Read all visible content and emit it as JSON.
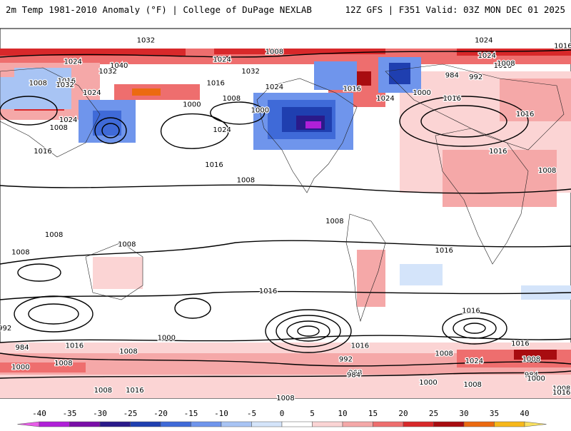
{
  "header": {
    "left_title": "2m Temp 1981-2010 Anomaly (°F) | College of DuPage NEXLAB",
    "right_title": "12Z GFS | F351 Valid: 03Z MON DEC 01 2025"
  },
  "colorbar": {
    "ticks": [
      "-40",
      "-35",
      "-30",
      "-25",
      "-20",
      "-15",
      "-10",
      "-5",
      "0",
      "5",
      "10",
      "15",
      "20",
      "25",
      "30",
      "35",
      "40"
    ],
    "colors": [
      "#e85ce8",
      "#b020d8",
      "#7a0ea8",
      "#2a1a8a",
      "#1f3fb0",
      "#3f6ad8",
      "#6f95ec",
      "#a8c4f4",
      "#d4e4fa",
      "#ffffff",
      "#fbd4d4",
      "#f5a8a8",
      "#ee6e6e",
      "#d8282a",
      "#a80c10",
      "#ec6a10",
      "#f7b81a",
      "#f9e060"
    ]
  },
  "isobars": [
    {
      "text": "1032",
      "lon": -88,
      "lat": 84
    },
    {
      "text": "1024",
      "lon": 125,
      "lat": 84
    },
    {
      "text": "1016",
      "lon": 175,
      "lat": 81
    },
    {
      "text": "1008",
      "lon": -7,
      "lat": 78
    },
    {
      "text": "1024",
      "lon": 127,
      "lat": 76
    },
    {
      "text": "1016",
      "lon": 137,
      "lat": 71
    },
    {
      "text": "1008",
      "lon": 139,
      "lat": 72
    },
    {
      "text": "1040",
      "lon": -105,
      "lat": 71
    },
    {
      "text": "1024",
      "lon": -134,
      "lat": 73
    },
    {
      "text": "1024",
      "lon": -40,
      "lat": 74
    },
    {
      "text": "1032",
      "lon": -112,
      "lat": 68
    },
    {
      "text": "1032",
      "lon": -22,
      "lat": 68
    },
    {
      "text": "1008",
      "lon": -156,
      "lat": 62
    },
    {
      "text": "1016",
      "lon": -138,
      "lat": 63
    },
    {
      "text": "1032",
      "lon": -139,
      "lat": 61
    },
    {
      "text": "1024",
      "lon": -122,
      "lat": 57
    },
    {
      "text": "1016",
      "lon": -44,
      "lat": 62
    },
    {
      "text": "1024",
      "lon": -7,
      "lat": 60
    },
    {
      "text": "1016",
      "lon": 42,
      "lat": 59
    },
    {
      "text": "984",
      "lon": 105,
      "lat": 66
    },
    {
      "text": "992",
      "lon": 120,
      "lat": 65
    },
    {
      "text": "1000",
      "lon": 86,
      "lat": 57
    },
    {
      "text": "1016",
      "lon": 105,
      "lat": 54
    },
    {
      "text": "1024",
      "lon": 63,
      "lat": 54
    },
    {
      "text": "1008",
      "lon": -34,
      "lat": 54
    },
    {
      "text": "1000",
      "lon": -59,
      "lat": 51
    },
    {
      "text": "1024",
      "lon": -137,
      "lat": 43
    },
    {
      "text": "1008",
      "lon": -143,
      "lat": 39
    },
    {
      "text": "1024",
      "lon": -40,
      "lat": 38
    },
    {
      "text": "1016",
      "lon": -153,
      "lat": 27
    },
    {
      "text": "1016",
      "lon": -45,
      "lat": 20
    },
    {
      "text": "1016",
      "lon": 151,
      "lat": 46
    },
    {
      "text": "1016",
      "lon": 134,
      "lat": 27
    },
    {
      "text": "1008",
      "lon": -25,
      "lat": 12
    },
    {
      "text": "1008",
      "lon": 165,
      "lat": 17
    },
    {
      "text": "1008",
      "lon": 31,
      "lat": -9
    },
    {
      "text": "1008",
      "lon": -146,
      "lat": -16
    },
    {
      "text": "1008",
      "lon": -100,
      "lat": -21
    },
    {
      "text": "1008",
      "lon": -167,
      "lat": -25
    },
    {
      "text": "1016",
      "lon": 100,
      "lat": -24
    },
    {
      "text": "1016",
      "lon": -11,
      "lat": -45
    },
    {
      "text": "1016",
      "lon": 117,
      "lat": -55
    },
    {
      "text": "992",
      "lon": -177,
      "lat": -64
    },
    {
      "text": "984",
      "lon": -166,
      "lat": -74
    },
    {
      "text": "1016",
      "lon": -133,
      "lat": -73
    },
    {
      "text": "1008",
      "lon": -140,
      "lat": -82
    },
    {
      "text": "1000",
      "lon": -167,
      "lat": -84
    },
    {
      "text": "1008",
      "lon": -99,
      "lat": -76
    },
    {
      "text": "1000",
      "lon": -75,
      "lat": -69
    },
    {
      "text": "1016",
      "lon": 148,
      "lat": -72
    },
    {
      "text": "1008",
      "lon": 155,
      "lat": -80
    },
    {
      "text": "1016",
      "lon": 47,
      "lat": -73
    },
    {
      "text": "1008",
      "lon": 100,
      "lat": -77
    },
    {
      "text": "992",
      "lon": 38,
      "lat": -80
    },
    {
      "text": "968",
      "lon": 44,
      "lat": -87
    },
    {
      "text": "984",
      "lon": 43,
      "lat": -88
    },
    {
      "text": "1000",
      "lon": 90,
      "lat": -92
    },
    {
      "text": "1024",
      "lon": 119,
      "lat": -81
    },
    {
      "text": "1008",
      "lon": 118,
      "lat": -93
    },
    {
      "text": "984",
      "lon": 155,
      "lat": -88
    },
    {
      "text": "1000",
      "lon": 158,
      "lat": -90
    },
    {
      "text": "1008",
      "lon": 174,
      "lat": -95
    },
    {
      "text": "1016",
      "lon": 174,
      "lat": -97
    },
    {
      "text": "1008",
      "lon": -115,
      "lat": -96
    },
    {
      "text": "1016",
      "lon": -95,
      "lat": -96
    },
    {
      "text": "1008",
      "lon": 0,
      "lat": -100
    }
  ],
  "highs_lows": [
    {
      "text": "1000",
      "lon": -16,
      "lat": 48
    }
  ]
}
